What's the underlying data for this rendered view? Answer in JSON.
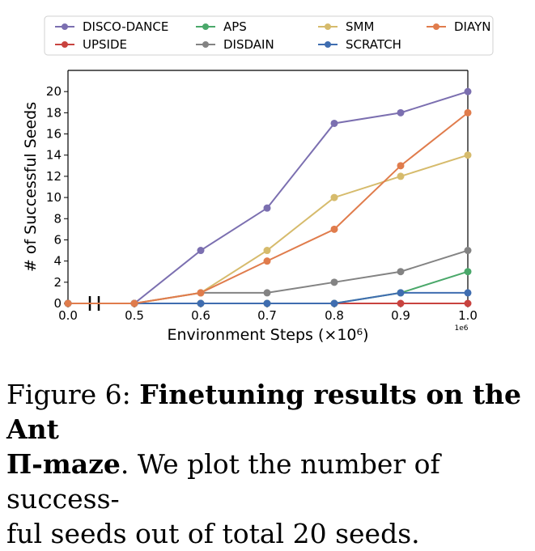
{
  "chart_data": {
    "type": "line",
    "x": [
      0.0,
      0.5,
      0.6,
      0.7,
      0.8,
      0.9,
      1.0
    ],
    "x_tick_labels": [
      "0.0",
      "0.5",
      "0.6",
      "0.7",
      "0.8",
      "0.9",
      "1.0"
    ],
    "y_ticks": [
      0,
      2,
      4,
      6,
      8,
      10,
      12,
      14,
      16,
      18,
      20
    ],
    "ylim": [
      0,
      22
    ],
    "xlabel": "Environment Steps (×10⁶)",
    "ylabel": "# of Successful Seeds",
    "x_offset_label": "1e6",
    "axis_break": "between 0.0 and 0.5",
    "legend_position": "top",
    "series": [
      {
        "name": "DISCO-DANCE",
        "color": "#7b6fb0",
        "values": [
          0,
          0,
          5,
          9,
          17,
          18,
          20
        ]
      },
      {
        "name": "UPSIDE",
        "color": "#c8433f",
        "values": [
          0,
          0,
          0,
          0,
          0,
          0,
          0
        ]
      },
      {
        "name": "APS",
        "color": "#4aa86a",
        "values": [
          0,
          0,
          0,
          0,
          0,
          1,
          3
        ]
      },
      {
        "name": "DISDAIN",
        "color": "#838383",
        "values": [
          0,
          0,
          1,
          1,
          2,
          3,
          5
        ]
      },
      {
        "name": "SMM",
        "color": "#d6bb6c",
        "values": [
          0,
          0,
          1,
          5,
          10,
          12,
          14
        ]
      },
      {
        "name": "SCRATCH",
        "color": "#3f6db0",
        "values": [
          0,
          0,
          0,
          0,
          0,
          1,
          1
        ]
      },
      {
        "name": "DIAYN",
        "color": "#e07c4c",
        "values": [
          0,
          0,
          1,
          4,
          7,
          13,
          18
        ]
      }
    ]
  },
  "caption": {
    "figure_label": "Figure 6:",
    "bold_title_1": "Finetuning results on the Ant",
    "bold_title_2": "Π-maze",
    "body_1": ". We plot the number of success-",
    "body_2": "ful seeds out of total 20 seeds."
  }
}
